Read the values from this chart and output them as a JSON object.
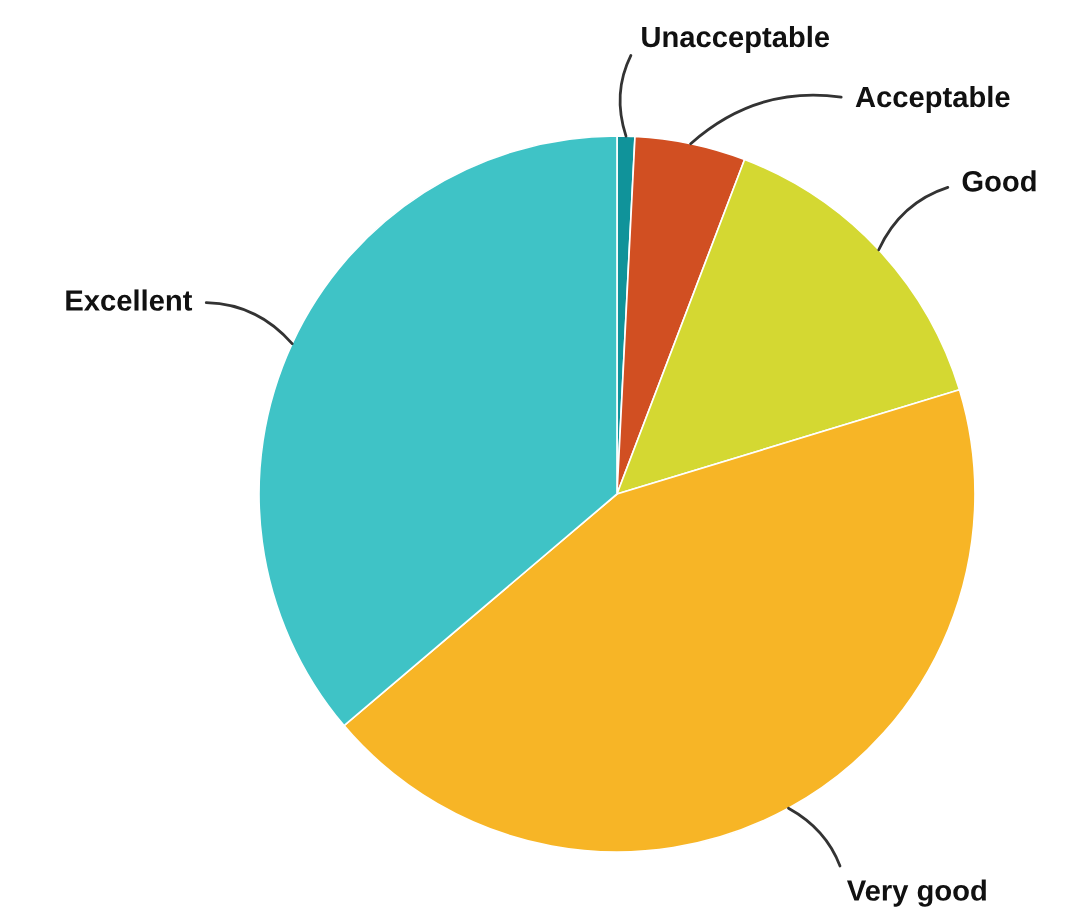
{
  "chart_data": {
    "type": "pie",
    "categories": [
      "Unacceptable",
      "Acceptable",
      "Good",
      "Very good",
      "Excellent"
    ],
    "values": [
      0.8,
      5.0,
      14.5,
      43.5,
      36.2
    ],
    "colors": [
      "#10939a",
      "#d14f22",
      "#d4d832",
      "#f7b526",
      "#3fc3c6"
    ]
  }
}
